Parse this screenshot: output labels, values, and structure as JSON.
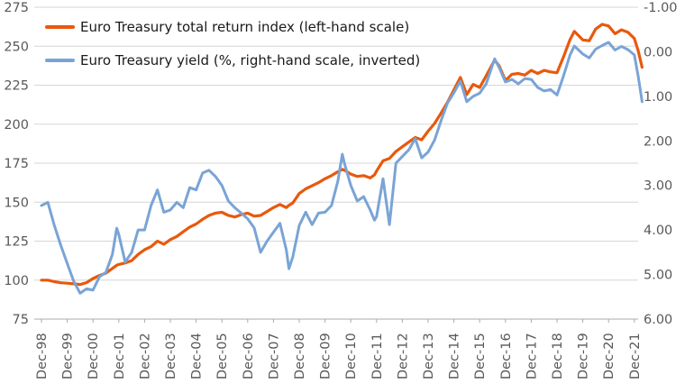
{
  "chart": {
    "legend": [
      {
        "label": "Euro Treasury total return index (left-hand scale)",
        "color": "#E8590D"
      },
      {
        "label": "Euro Treasury yield (%, right-hand scale, inverted)",
        "color": "#79A4D6"
      }
    ]
  },
  "chart_data": {
    "type": "line",
    "x_unit": "years since Dec-1998",
    "x_tick_labels": [
      "Dec-98",
      "Dec-99",
      "Dec-00",
      "Dec-01",
      "Dec-02",
      "Dec-03",
      "Dec-04",
      "Dec-05",
      "Dec-06",
      "Dec-07",
      "Dec-08",
      "Dec-09",
      "Dec-10",
      "Dec-11",
      "Dec-12",
      "Dec-13",
      "Dec-14",
      "Dec-15",
      "Dec-16",
      "Dec-17",
      "Dec-18",
      "Dec-19",
      "Dec-20",
      "Dec-21"
    ],
    "left_axis": {
      "ticks": [
        275,
        250,
        225,
        200,
        175,
        150,
        125,
        100,
        75
      ],
      "range": [
        75,
        275
      ]
    },
    "right_axis": {
      "ticks": [
        "-1.00",
        "0.00",
        "1.00",
        "2.00",
        "3.00",
        "4.00",
        "5.00",
        "6.00"
      ],
      "range": [
        -1,
        6
      ],
      "inverted": true
    },
    "grid": true,
    "legend_position": "top-left",
    "series": [
      {
        "name": "Euro Treasury total return index (left-hand scale)",
        "axis": "left",
        "color": "#E8590D",
        "x": [
          0,
          0.25,
          0.5,
          0.75,
          1,
          1.25,
          1.5,
          1.75,
          2,
          2.25,
          2.5,
          2.75,
          2.92,
          3,
          3.25,
          3.5,
          3.75,
          4,
          4.25,
          4.5,
          4.75,
          5,
          5.25,
          5.5,
          5.75,
          6,
          6.25,
          6.5,
          6.75,
          7,
          7.25,
          7.5,
          7.75,
          8,
          8.25,
          8.5,
          8.75,
          9,
          9.25,
          9.5,
          9.6,
          9.75,
          10,
          10.25,
          10.5,
          10.75,
          11,
          11.25,
          11.5,
          11.67,
          11.75,
          12,
          12.25,
          12.5,
          12.75,
          12.92,
          13,
          13.25,
          13.5,
          13.75,
          14,
          14.25,
          14.5,
          14.75,
          15,
          15.25,
          15.5,
          15.75,
          16,
          16.25,
          16.5,
          16.75,
          17,
          17.25,
          17.58,
          17.75,
          18,
          18.25,
          18.5,
          18.75,
          19,
          19.25,
          19.5,
          19.75,
          20,
          20.25,
          20.5,
          20.67,
          21,
          21.25,
          21.5,
          21.75,
          22,
          22.25,
          22.5,
          22.75,
          23,
          23.15,
          23.3
        ],
        "values": [
          100,
          100,
          99,
          98.3,
          98,
          97.6,
          97.2,
          98.4,
          101,
          103,
          104.5,
          107.5,
          109.5,
          110,
          111,
          112.5,
          116.5,
          119.5,
          121.5,
          125,
          123,
          126,
          128,
          131,
          134,
          136,
          139,
          141.5,
          143,
          143.5,
          141.5,
          140.5,
          142,
          143,
          141,
          141.5,
          144,
          146.5,
          148.5,
          146.5,
          148,
          149.5,
          155.5,
          158.5,
          160.5,
          162.5,
          165,
          167,
          169.5,
          171,
          170.5,
          168,
          166.5,
          167,
          165.5,
          167.5,
          170,
          176.5,
          178,
          182.5,
          185.5,
          188.5,
          191.5,
          190,
          195.5,
          200.5,
          207,
          214,
          222,
          230,
          219,
          225.5,
          223.5,
          231,
          241,
          237.5,
          228,
          232,
          232.5,
          231.5,
          234.5,
          232.5,
          234.5,
          233.5,
          233,
          243,
          254,
          259.5,
          254,
          253.5,
          261,
          264,
          263,
          258,
          260.5,
          259,
          255,
          247,
          236.5
        ]
      },
      {
        "name": "Euro Treasury yield (%, right-hand scale, inverted)",
        "axis": "right",
        "color": "#79A4D6",
        "x": [
          0,
          0.25,
          0.5,
          0.75,
          1,
          1.25,
          1.5,
          1.75,
          2,
          2.25,
          2.5,
          2.75,
          2.92,
          3,
          3.25,
          3.5,
          3.75,
          4,
          4.25,
          4.5,
          4.75,
          5,
          5.25,
          5.5,
          5.75,
          6,
          6.25,
          6.5,
          6.75,
          7,
          7.25,
          7.5,
          7.75,
          8,
          8.25,
          8.5,
          8.75,
          9,
          9.25,
          9.5,
          9.6,
          9.75,
          10,
          10.25,
          10.5,
          10.75,
          11,
          11.25,
          11.5,
          11.67,
          11.75,
          12,
          12.25,
          12.5,
          12.75,
          12.92,
          13,
          13.25,
          13.5,
          13.75,
          14,
          14.25,
          14.5,
          14.75,
          15,
          15.25,
          15.5,
          15.75,
          16,
          16.25,
          16.5,
          16.75,
          17,
          17.25,
          17.58,
          17.75,
          18,
          18.25,
          18.5,
          18.75,
          19,
          19.25,
          19.5,
          19.75,
          20,
          20.25,
          20.5,
          20.67,
          21,
          21.25,
          21.5,
          21.75,
          22,
          22.25,
          22.5,
          22.75,
          23,
          23.15,
          23.3
        ],
        "values": [
          3.45,
          3.38,
          3.9,
          4.35,
          4.75,
          5.15,
          5.42,
          5.32,
          5.35,
          5.05,
          4.95,
          4.55,
          3.96,
          4.1,
          4.72,
          4.5,
          4.0,
          4.0,
          3.45,
          3.1,
          3.6,
          3.55,
          3.38,
          3.5,
          3.05,
          3.1,
          2.72,
          2.66,
          2.8,
          3.0,
          3.35,
          3.5,
          3.62,
          3.75,
          3.95,
          4.5,
          4.25,
          4.05,
          3.85,
          4.45,
          4.87,
          4.6,
          3.9,
          3.6,
          3.88,
          3.62,
          3.6,
          3.45,
          2.9,
          2.3,
          2.5,
          3.0,
          3.35,
          3.25,
          3.55,
          3.78,
          3.7,
          2.85,
          3.88,
          2.5,
          2.35,
          2.2,
          1.95,
          2.38,
          2.25,
          1.98,
          1.55,
          1.15,
          0.92,
          0.66,
          1.12,
          1.0,
          0.93,
          0.72,
          0.16,
          0.35,
          0.68,
          0.62,
          0.72,
          0.6,
          0.62,
          0.8,
          0.88,
          0.85,
          0.97,
          0.55,
          0.08,
          -0.13,
          0.05,
          0.14,
          -0.06,
          -0.14,
          -0.21,
          -0.04,
          -0.12,
          -0.05,
          0.07,
          0.55,
          1.12
        ]
      }
    ]
  }
}
